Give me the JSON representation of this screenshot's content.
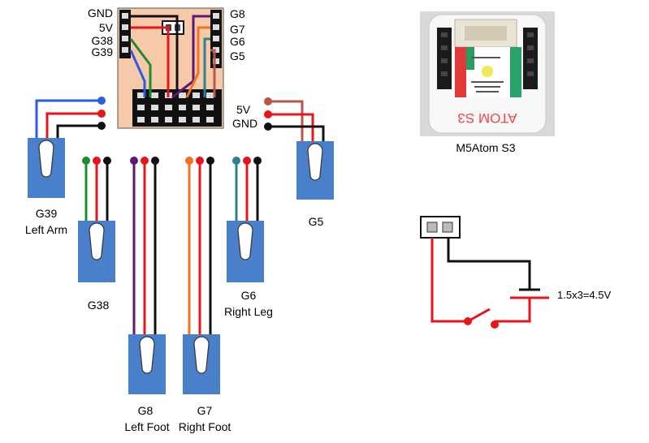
{
  "board_pins_left": [
    "GND",
    "5V",
    "G38",
    "G39"
  ],
  "board_pins_right": [
    "G8",
    "G7",
    "G6",
    "G5"
  ],
  "power_labels": [
    "5V",
    "GND"
  ],
  "servos": [
    {
      "pin": "G39",
      "name": "Left Arm"
    },
    {
      "pin": "G38",
      "name": ""
    },
    {
      "pin": "G8",
      "name": "Left Foot"
    },
    {
      "pin": "G7",
      "name": "Right Foot"
    },
    {
      "pin": "G6",
      "name": "Right Leg"
    },
    {
      "pin": "G5",
      "name": ""
    }
  ],
  "device": {
    "caption": "M5Atom S3",
    "case_text": "ATOM S3"
  },
  "battery": {
    "label": "1.5x3=4.5V"
  },
  "colors": {
    "board": "#f6c9a8",
    "servo": "#4a7fc9",
    "red": "#e8141b",
    "black": "#000000",
    "blue": "#2b5ce6",
    "green": "#1e8c2e",
    "purple": "#5c1878",
    "orange": "#f07324",
    "teal": "#2e7f8f",
    "brown": "#b5574b"
  }
}
